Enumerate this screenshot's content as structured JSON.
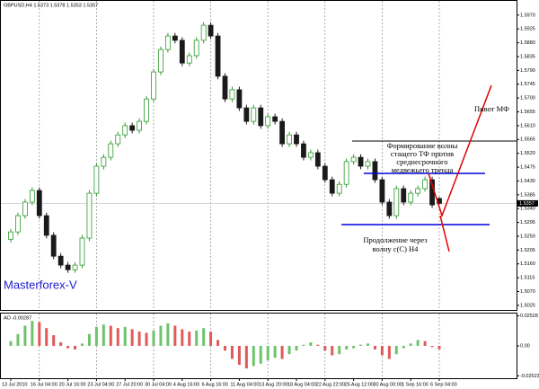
{
  "chart_data": [
    {
      "type": "candlestick",
      "title": "GBPUSD,H4 1.5373 1.5378 1.5353 1.5357",
      "watermark": "Masterforex-V",
      "categories": [
        "13 Jul 2010",
        null,
        null,
        null,
        "16 Jul 04:00",
        null,
        null,
        null,
        "20 Jul 16:00",
        null,
        null,
        null,
        "23 Jul 04:00",
        null,
        null,
        null,
        "27 Jul 20:00",
        null,
        null,
        null,
        "30 Jul 04:00",
        null,
        null,
        null,
        "4 Aug 16:00",
        null,
        null,
        null,
        "6 Aug 16:00",
        null,
        null,
        null,
        "11 Aug 04:00",
        null,
        null,
        null,
        "13 Aug 20:00",
        null,
        null,
        null,
        "18 Aug 04:00",
        null,
        null,
        null,
        "22 Aug 22:00",
        null,
        null,
        null,
        "25 Aug 12:00",
        null,
        null,
        null,
        "30 Aug 00:00",
        null,
        null,
        null,
        "1 Sep 16:00",
        null,
        null,
        null,
        "6 Sep 04:00"
      ],
      "open": [
        1.524,
        1.5264,
        1.5317,
        1.5361,
        1.5399,
        1.5317,
        1.5253,
        1.5185,
        1.5156,
        1.5141,
        1.5156,
        1.5244,
        1.539,
        1.5478,
        1.5507,
        1.5551,
        1.558,
        1.561,
        1.5595,
        1.5624,
        1.5697,
        1.5785,
        1.5858,
        1.5902,
        1.5888,
        1.5814,
        1.5838,
        1.5888,
        1.5937,
        1.5902,
        1.5771,
        1.5697,
        1.5727,
        1.5668,
        1.5624,
        1.5668,
        1.561,
        1.5639,
        1.5624,
        1.5551,
        1.558,
        1.5551,
        1.5507,
        1.5522,
        1.5478,
        1.5434,
        1.539,
        1.5419,
        1.5493,
        1.5507,
        1.5478,
        1.5493,
        1.5434,
        1.5361,
        1.5317,
        1.5405,
        1.5361,
        1.539,
        1.5405,
        1.5434,
        1.5373
      ],
      "high": [
        1.5274,
        1.5327,
        1.5371,
        1.5409,
        1.5409,
        1.5327,
        1.5263,
        1.5195,
        1.5166,
        1.5166,
        1.5254,
        1.54,
        1.5488,
        1.5517,
        1.5561,
        1.559,
        1.562,
        1.562,
        1.5634,
        1.5707,
        1.5795,
        1.5868,
        1.5912,
        1.5912,
        1.5898,
        1.5848,
        1.5898,
        1.5947,
        1.5947,
        1.5912,
        1.5781,
        1.5737,
        1.5737,
        1.5678,
        1.5678,
        1.5678,
        1.5649,
        1.5649,
        1.5634,
        1.559,
        1.559,
        1.5561,
        1.5532,
        1.5532,
        1.5488,
        1.5444,
        1.5429,
        1.5503,
        1.5517,
        1.5517,
        1.5503,
        1.5503,
        1.5444,
        1.5371,
        1.5415,
        1.5415,
        1.54,
        1.5415,
        1.5444,
        1.5444,
        1.5378
      ],
      "low": [
        1.523,
        1.5254,
        1.5307,
        1.5351,
        1.5307,
        1.5243,
        1.5175,
        1.5146,
        1.5131,
        1.5131,
        1.5146,
        1.5234,
        1.538,
        1.5468,
        1.5497,
        1.5541,
        1.557,
        1.5585,
        1.5585,
        1.5614,
        1.5687,
        1.5775,
        1.5848,
        1.5878,
        1.5804,
        1.5804,
        1.5828,
        1.5878,
        1.5892,
        1.5761,
        1.5687,
        1.5687,
        1.5658,
        1.5614,
        1.5614,
        1.56,
        1.56,
        1.5614,
        1.5541,
        1.5541,
        1.5541,
        1.5497,
        1.5497,
        1.5468,
        1.5424,
        1.538,
        1.538,
        1.5409,
        1.5483,
        1.5468,
        1.5468,
        1.5424,
        1.5351,
        1.5307,
        1.5307,
        1.5351,
        1.5351,
        1.538,
        1.5395,
        1.5342,
        1.5353
      ],
      "close": [
        1.5264,
        1.5317,
        1.5361,
        1.5399,
        1.5317,
        1.5253,
        1.5185,
        1.5156,
        1.5141,
        1.5156,
        1.5244,
        1.539,
        1.5478,
        1.5507,
        1.5551,
        1.558,
        1.561,
        1.5595,
        1.5624,
        1.5697,
        1.5785,
        1.5858,
        1.5902,
        1.5888,
        1.5814,
        1.5838,
        1.5888,
        1.5937,
        1.5902,
        1.5771,
        1.5697,
        1.5727,
        1.5668,
        1.5624,
        1.5668,
        1.561,
        1.5639,
        1.5624,
        1.5551,
        1.558,
        1.5551,
        1.5507,
        1.5522,
        1.5478,
        1.5434,
        1.539,
        1.5419,
        1.5493,
        1.5507,
        1.5478,
        1.5493,
        1.5434,
        1.5361,
        1.5317,
        1.5405,
        1.5361,
        1.539,
        1.5405,
        1.5434,
        1.5352,
        1.5357
      ],
      "up_color": "#2e9a2e",
      "down_color": "#1a1a1a",
      "last_price": 1.5357,
      "ylim": [
        1.501,
        1.599
      ],
      "yticks": [
        1.5025,
        {
          "value": 1.507,
          "label": "1.5070"
        },
        1.5115,
        {
          "value": 1.516,
          "label": "1.5160"
        },
        1.5205,
        {
          "value": 1.525,
          "label": "1.5250"
        },
        1.5295,
        {
          "value": 1.534,
          "label": "1.5340"
        },
        1.5385,
        {
          "value": 1.543,
          "label": "1.5430"
        },
        1.5475,
        {
          "value": 1.552,
          "label": "1.5520"
        },
        1.5565,
        {
          "value": 1.561,
          "label": "1.5610"
        },
        1.5655,
        {
          "value": 1.57,
          "label": "1.5700"
        },
        1.5745,
        {
          "value": 1.579,
          "label": "1.5790"
        },
        1.5835,
        {
          "value": 1.588,
          "label": "1.5880"
        },
        1.5925,
        {
          "value": 1.597,
          "label": "1.5970"
        }
      ],
      "grid": true,
      "annotations": [
        {
          "lines": [
            "Пивот МФ"
          ]
        },
        {
          "lines": [
            "Формирование волны",
            "стащего ТФ против",
            "среднесрочного",
            "медвежьего тренда"
          ]
        },
        {
          "lines": [
            "Продолжение через",
            "волну с(C) Н4"
          ]
        }
      ]
    },
    {
      "type": "bar",
      "title": "AO -0.00287",
      "values": [
        0.004,
        0.01,
        0.017,
        0.021,
        0.02,
        0.015,
        0.009,
        0.003,
        -0.002,
        -0.003,
        0.002,
        0.01,
        0.016,
        0.018,
        0.017,
        0.015,
        0.016,
        0.014,
        0.012,
        0.011,
        0.013,
        0.017,
        0.019,
        0.017,
        0.014,
        0.012,
        0.013,
        0.015,
        0.012,
        0.005,
        -0.004,
        -0.011,
        -0.016,
        -0.019,
        -0.017,
        -0.015,
        -0.012,
        -0.01,
        -0.011,
        -0.007,
        -0.004,
        0.001,
        0.003,
        0.001,
        -0.004,
        -0.008,
        -0.007,
        -0.003,
        -0.002,
        0.001,
        0.002,
        -0.003,
        -0.008,
        -0.011,
        -0.007,
        -0.002,
        0.002,
        0.005,
        0.004,
        -0.001,
        -0.00287
      ],
      "up_color": "#6cc46c",
      "down_color": "#e05a5a",
      "ylim": [
        -0.0265,
        0.0265
      ],
      "yticks": [
        -0.02523,
        {
          "value": 0,
          "label": "0.00"
        },
        0.02528
      ]
    }
  ]
}
